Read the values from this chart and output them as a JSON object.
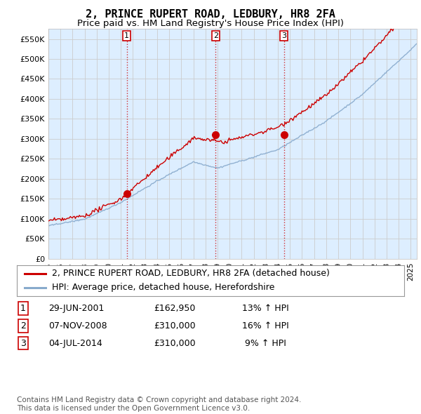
{
  "title": "2, PRINCE RUPERT ROAD, LEDBURY, HR8 2FA",
  "subtitle": "Price paid vs. HM Land Registry's House Price Index (HPI)",
  "ylabel_ticks": [
    "£0",
    "£50K",
    "£100K",
    "£150K",
    "£200K",
    "£250K",
    "£300K",
    "£350K",
    "£400K",
    "£450K",
    "£500K",
    "£550K"
  ],
  "ytick_values": [
    0,
    50000,
    100000,
    150000,
    200000,
    250000,
    300000,
    350000,
    400000,
    450000,
    500000,
    550000
  ],
  "ylim": [
    0,
    575000
  ],
  "xlim_start": 1995.0,
  "xlim_end": 2025.5,
  "purchase_dates": [
    2001.49,
    2008.85,
    2014.5
  ],
  "purchase_prices": [
    162950,
    310000,
    310000
  ],
  "purchase_labels": [
    "1",
    "2",
    "3"
  ],
  "vline_color": "#cc0000",
  "vline_style": ":",
  "red_line_color": "#cc0000",
  "blue_line_color": "#88aacc",
  "chart_bg_color": "#ddeeff",
  "legend_entries": [
    "2, PRINCE RUPERT ROAD, LEDBURY, HR8 2FA (detached house)",
    "HPI: Average price, detached house, Herefordshire"
  ],
  "table_rows": [
    [
      "1",
      "29-JUN-2001",
      "£162,950",
      "13% ↑ HPI"
    ],
    [
      "2",
      "07-NOV-2008",
      "£310,000",
      "16% ↑ HPI"
    ],
    [
      "3",
      "04-JUL-2014",
      "£310,000",
      " 9% ↑ HPI"
    ]
  ],
  "footnote": "Contains HM Land Registry data © Crown copyright and database right 2024.\nThis data is licensed under the Open Government Licence v3.0.",
  "background_color": "#ffffff",
  "grid_color": "#cccccc",
  "title_fontsize": 11,
  "subtitle_fontsize": 9.5,
  "tick_fontsize": 8,
  "legend_fontsize": 9,
  "table_fontsize": 9
}
